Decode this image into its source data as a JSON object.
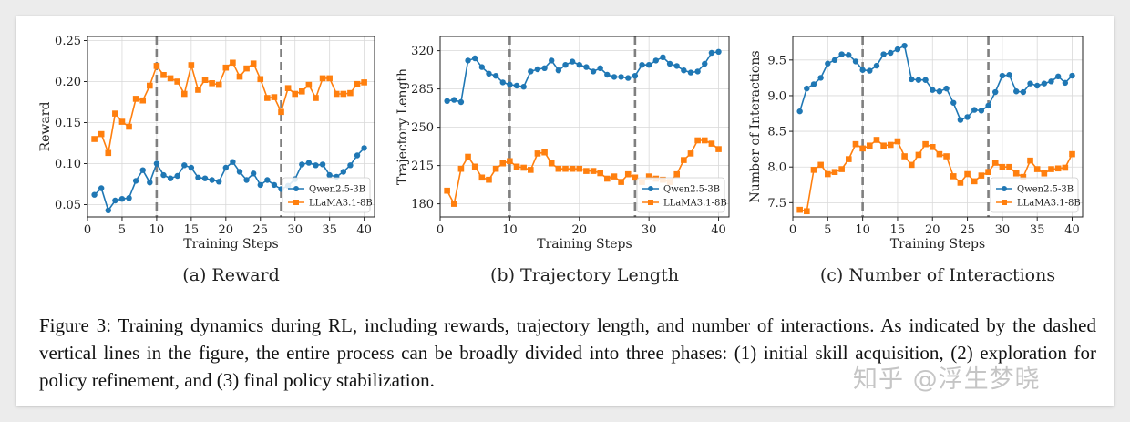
{
  "colors": {
    "blue": "#1f77b4",
    "orange": "#ff7f0e",
    "phase_line": "#7f7f7f",
    "grid": "#d9d9d9"
  },
  "chart_data": [
    {
      "type": "line",
      "caption": "(a) Reward",
      "xlabel": "Training Steps",
      "ylabel": "Reward",
      "xlim": [
        0,
        41.5
      ],
      "ylim": [
        0.035,
        0.255
      ],
      "xticks": [
        0,
        5,
        10,
        15,
        20,
        25,
        30,
        35,
        40
      ],
      "yticks": [
        0.05,
        0.1,
        0.15,
        0.2,
        0.25
      ],
      "ytick_labels": [
        "0.05",
        "0.10",
        "0.15",
        "0.20",
        "0.25"
      ],
      "phase_lines": [
        10,
        28
      ],
      "legend": "bottom-right",
      "x": [
        1,
        2,
        3,
        4,
        5,
        6,
        7,
        8,
        9,
        10,
        11,
        12,
        13,
        14,
        15,
        16,
        17,
        18,
        19,
        20,
        21,
        22,
        23,
        24,
        25,
        26,
        27,
        28,
        29,
        30,
        31,
        32,
        33,
        34,
        35,
        36,
        37,
        38,
        39,
        40
      ],
      "series": [
        {
          "name": "Qwen2.5-3B",
          "color": "#1f77b4",
          "marker": "circle",
          "values": [
            0.062,
            0.07,
            0.043,
            0.055,
            0.057,
            0.058,
            0.079,
            0.092,
            0.077,
            0.1,
            0.086,
            0.082,
            0.085,
            0.098,
            0.095,
            0.083,
            0.082,
            0.08,
            0.078,
            0.095,
            0.102,
            0.09,
            0.08,
            0.088,
            0.074,
            0.08,
            0.074,
            0.069,
            0.073,
            0.081,
            0.099,
            0.101,
            0.098,
            0.099,
            0.086,
            0.084,
            0.09,
            0.098,
            0.11,
            0.119
          ]
        },
        {
          "name": "LLaMA3.1-8B",
          "color": "#ff7f0e",
          "marker": "square",
          "values": [
            0.13,
            0.136,
            0.113,
            0.161,
            0.151,
            0.145,
            0.179,
            0.177,
            0.195,
            0.219,
            0.208,
            0.204,
            0.2,
            0.185,
            0.22,
            0.19,
            0.202,
            0.198,
            0.196,
            0.217,
            0.223,
            0.206,
            0.216,
            0.222,
            0.203,
            0.18,
            0.181,
            0.163,
            0.192,
            0.185,
            0.188,
            0.196,
            0.18,
            0.204,
            0.204,
            0.185,
            0.185,
            0.186,
            0.197,
            0.199
          ]
        }
      ]
    },
    {
      "type": "line",
      "caption": "(b) Trajectory Length",
      "xlabel": "Training Steps",
      "ylabel": "Trajectory Length",
      "xlim": [
        0,
        41.5
      ],
      "ylim": [
        168,
        333
      ],
      "xticks": [
        0,
        10,
        20,
        30,
        40
      ],
      "yticks": [
        180,
        215,
        250,
        285,
        320
      ],
      "ytick_labels": [
        "180",
        "215",
        "250",
        "285",
        "320"
      ],
      "phase_lines": [
        10,
        28
      ],
      "legend": "bottom-right",
      "x": [
        1,
        2,
        3,
        4,
        5,
        6,
        7,
        8,
        9,
        10,
        11,
        12,
        13,
        14,
        15,
        16,
        17,
        18,
        19,
        20,
        21,
        22,
        23,
        24,
        25,
        26,
        27,
        28,
        29,
        30,
        31,
        32,
        33,
        34,
        35,
        36,
        37,
        38,
        39,
        40
      ],
      "series": [
        {
          "name": "Qwen2.5-3B",
          "color": "#1f77b4",
          "marker": "circle",
          "values": [
            274,
            275,
            273,
            311,
            313,
            305,
            299,
            297,
            291,
            289,
            288,
            287,
            301,
            303,
            304,
            311,
            302,
            307,
            310,
            307,
            305,
            301,
            304,
            298,
            296,
            296,
            295,
            297,
            307,
            307,
            311,
            314,
            308,
            306,
            302,
            300,
            301,
            308,
            318,
            319
          ]
        },
        {
          "name": "LLaMA3.1-8B",
          "color": "#ff7f0e",
          "marker": "square",
          "values": [
            192,
            180,
            212,
            223,
            214,
            204,
            202,
            212,
            217,
            219,
            214,
            213,
            211,
            226,
            227,
            217,
            212,
            212,
            212,
            212,
            210,
            210,
            208,
            203,
            205,
            200,
            207,
            204,
            200,
            205,
            203,
            202,
            200,
            207,
            220,
            226,
            238,
            238,
            235,
            230
          ]
        }
      ]
    },
    {
      "type": "line",
      "caption": "(c) Number of Interactions",
      "xlabel": "Training Steps",
      "ylabel": "Number of Interactions",
      "xlim": [
        0,
        41.5
      ],
      "ylim": [
        7.3,
        9.83
      ],
      "xticks": [
        0,
        5,
        10,
        15,
        20,
        25,
        30,
        35,
        40
      ],
      "yticks": [
        7.5,
        8.0,
        8.5,
        9.0,
        9.5
      ],
      "ytick_labels": [
        "7.5",
        "8.0",
        "8.5",
        "9.0",
        "9.5"
      ],
      "phase_lines": [
        10,
        28
      ],
      "legend": "bottom-right",
      "x": [
        1,
        2,
        3,
        4,
        5,
        6,
        7,
        8,
        9,
        10,
        11,
        12,
        13,
        14,
        15,
        16,
        17,
        18,
        19,
        20,
        21,
        22,
        23,
        24,
        25,
        26,
        27,
        28,
        29,
        30,
        31,
        32,
        33,
        34,
        35,
        36,
        37,
        38,
        39,
        40
      ],
      "series": [
        {
          "name": "Qwen2.5-3B",
          "color": "#1f77b4",
          "marker": "circle",
          "values": [
            8.78,
            9.1,
            9.16,
            9.25,
            9.45,
            9.5,
            9.58,
            9.57,
            9.48,
            9.36,
            9.35,
            9.42,
            9.58,
            9.6,
            9.65,
            9.7,
            9.23,
            9.22,
            9.22,
            9.08,
            9.06,
            9.1,
            8.9,
            8.66,
            8.7,
            8.8,
            8.79,
            8.86,
            9.05,
            9.28,
            9.29,
            9.06,
            9.05,
            9.17,
            9.14,
            9.17,
            9.2,
            9.27,
            9.18,
            9.28
          ]
        },
        {
          "name": "LLaMA3.1-8B",
          "color": "#ff7f0e",
          "marker": "square",
          "values": [
            7.4,
            7.38,
            7.96,
            8.03,
            7.9,
            7.93,
            7.97,
            8.11,
            8.32,
            8.26,
            8.3,
            8.38,
            8.3,
            8.31,
            8.36,
            8.15,
            8.03,
            8.17,
            8.32,
            8.28,
            8.18,
            8.15,
            7.87,
            7.78,
            7.9,
            7.8,
            7.88,
            7.93,
            8.06,
            8.0,
            8.0,
            7.91,
            7.86,
            8.09,
            7.97,
            7.91,
            7.97,
            7.98,
            7.99,
            8.18
          ]
        }
      ]
    }
  ],
  "caption": {
    "text": "Figure 3: Training dynamics during RL, including rewards, trajectory length, and number of interactions. As indicated by the dashed vertical lines in the figure, the entire process can be broadly divided into three phases: (1) initial skill acquisition, (2) exploration for policy refinement, and (3) final policy stabilization."
  },
  "watermark": "知乎 @浮生梦晓"
}
